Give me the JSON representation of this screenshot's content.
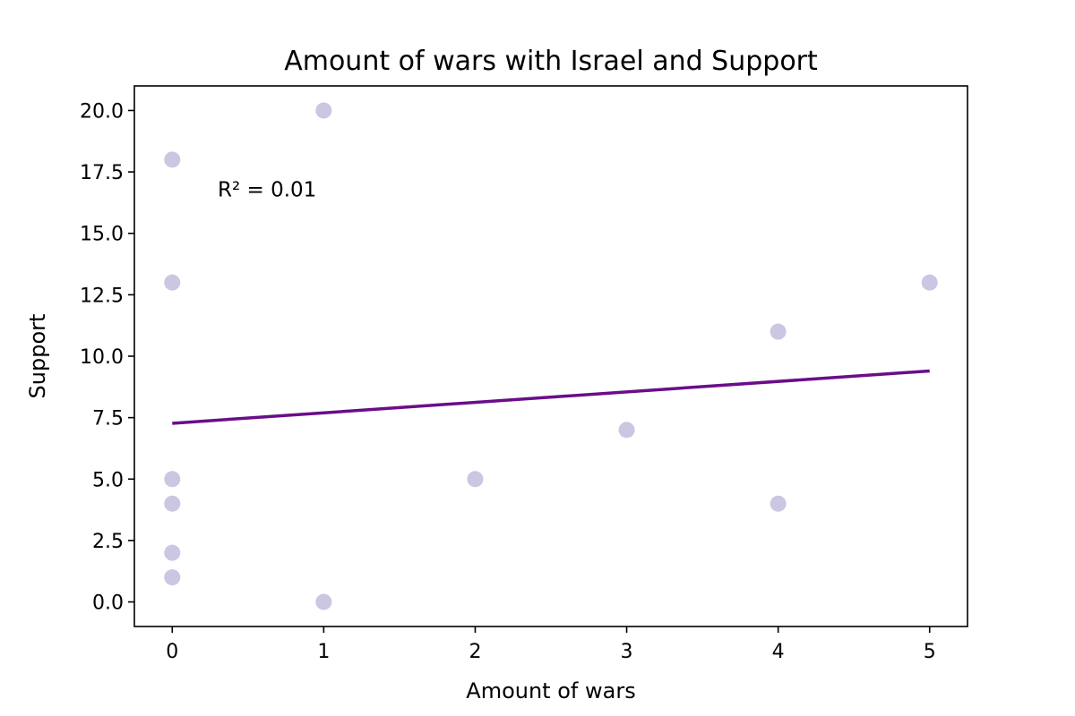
{
  "chart_data": {
    "type": "scatter",
    "title": "Amount of wars with Israel and Support",
    "xlabel": "Amount of wars",
    "ylabel": "Support",
    "xlim": [
      -0.25,
      5.25
    ],
    "ylim": [
      -1.0,
      21.0
    ],
    "xticks": [
      0,
      1,
      2,
      3,
      4,
      5
    ],
    "yticks": [
      0.0,
      2.5,
      5.0,
      7.5,
      10.0,
      12.5,
      15.0,
      17.5,
      20.0
    ],
    "ytick_labels": [
      "0.0",
      "2.5",
      "5.0",
      "7.5",
      "10.0",
      "12.5",
      "15.0",
      "17.5",
      "20.0"
    ],
    "grid": false,
    "points": [
      {
        "x": 0,
        "y": 18
      },
      {
        "x": 0,
        "y": 13
      },
      {
        "x": 0,
        "y": 5
      },
      {
        "x": 0,
        "y": 4
      },
      {
        "x": 0,
        "y": 2
      },
      {
        "x": 0,
        "y": 1
      },
      {
        "x": 1,
        "y": 20
      },
      {
        "x": 1,
        "y": 0
      },
      {
        "x": 2,
        "y": 5
      },
      {
        "x": 3,
        "y": 7
      },
      {
        "x": 4,
        "y": 11
      },
      {
        "x": 4,
        "y": 4
      },
      {
        "x": 5,
        "y": 13
      }
    ],
    "trendline": {
      "x": [
        0,
        5
      ],
      "y": [
        7.27,
        9.4
      ]
    },
    "annotation": {
      "text": "R² = 0.01",
      "x": 0.3,
      "y": 16.5
    },
    "colors": {
      "points": "#cbc6e2",
      "trendline": "#6a0d8a",
      "axes": "#000000"
    }
  }
}
